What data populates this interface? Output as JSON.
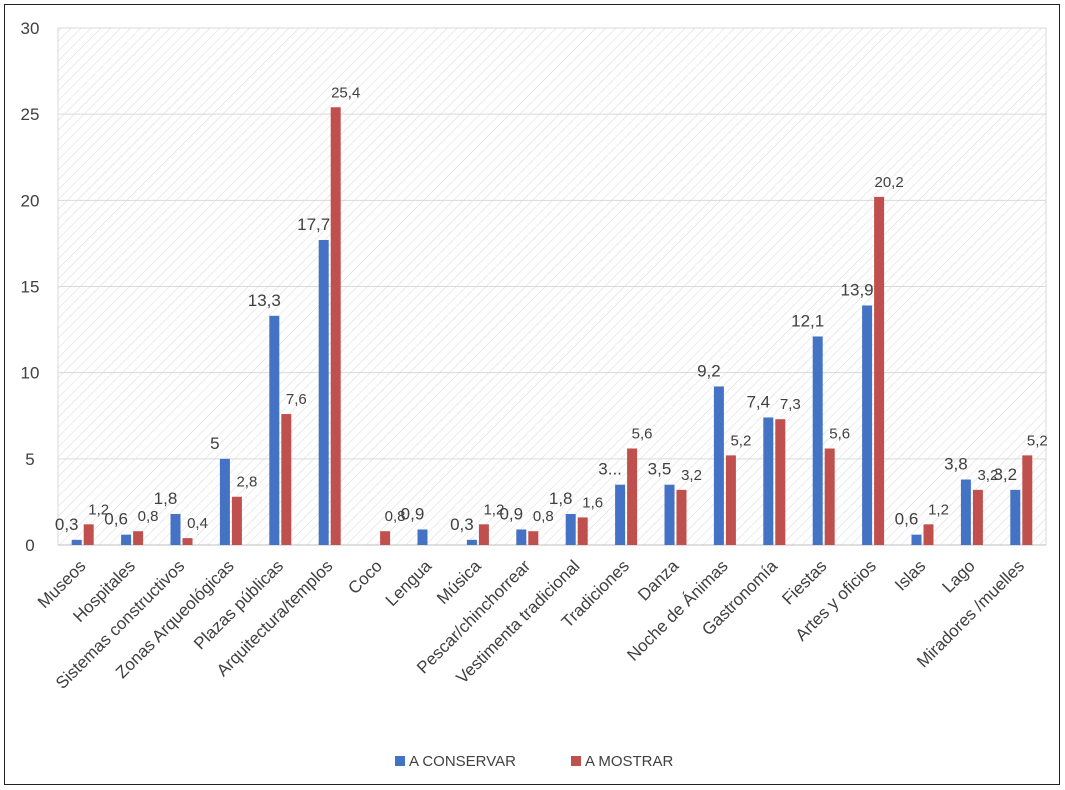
{
  "colors": {
    "a_conservar": "#4472c4",
    "a_mostrar": "#c0504d",
    "grid": "#d9d9d9",
    "text": "#404040"
  },
  "chart_data": {
    "type": "bar",
    "ylim": [
      0,
      30
    ],
    "yticks": [
      "0",
      "5",
      "10",
      "15",
      "20",
      "25",
      "30"
    ],
    "grid": true,
    "legend_position": "bottom",
    "categories": [
      "Museos",
      "Hospitales",
      "Sistemas constructivos",
      "Zonas Arqueológicas",
      "Plazas públicas",
      "Arquitectura/templos",
      "Coco",
      "Lengua",
      "Música",
      "Pescar/chinchorrear",
      "Vestimenta tradicional",
      "Tradiciones",
      "Danza",
      "Noche de Ánimas",
      "Gastronomía",
      "Fiestas",
      "Artes y oficios",
      "Islas",
      "Lago",
      "Miradores /muelles"
    ],
    "series": [
      {
        "name": "A CONSERVAR",
        "values": [
          0.3,
          0.6,
          1.8,
          5,
          13.3,
          17.7,
          0,
          0.9,
          0.3,
          0.9,
          1.8,
          3.5,
          3.5,
          9.2,
          7.4,
          12.1,
          13.9,
          0.6,
          3.8,
          3.2
        ],
        "labels": [
          "0,3",
          "0,6",
          "1,8",
          "5",
          "13,3",
          "17,7",
          "",
          "0,9",
          "0,3",
          "0,9",
          "1,8",
          "3...",
          "3,5",
          "9,2",
          "7,4",
          "12,1",
          "13,9",
          "0,6",
          "3,8",
          "3,2"
        ]
      },
      {
        "name": "A MOSTRAR",
        "values": [
          1.2,
          0.8,
          0.4,
          2.8,
          7.6,
          25.4,
          0.8,
          0,
          1.2,
          0.8,
          1.6,
          5.6,
          3.2,
          5.2,
          7.3,
          5.6,
          20.2,
          1.2,
          3.2,
          5.2
        ],
        "labels": [
          "1,2",
          "0,8",
          "0,4",
          "2,8",
          "7,6",
          "25,4",
          "0,8",
          "",
          "1,2",
          "0,8",
          "1,6",
          "5,6",
          "3,2",
          "5,2",
          "7,3",
          "5,6",
          "20,2",
          "1,2",
          "3,2",
          "5,2"
        ]
      }
    ]
  }
}
